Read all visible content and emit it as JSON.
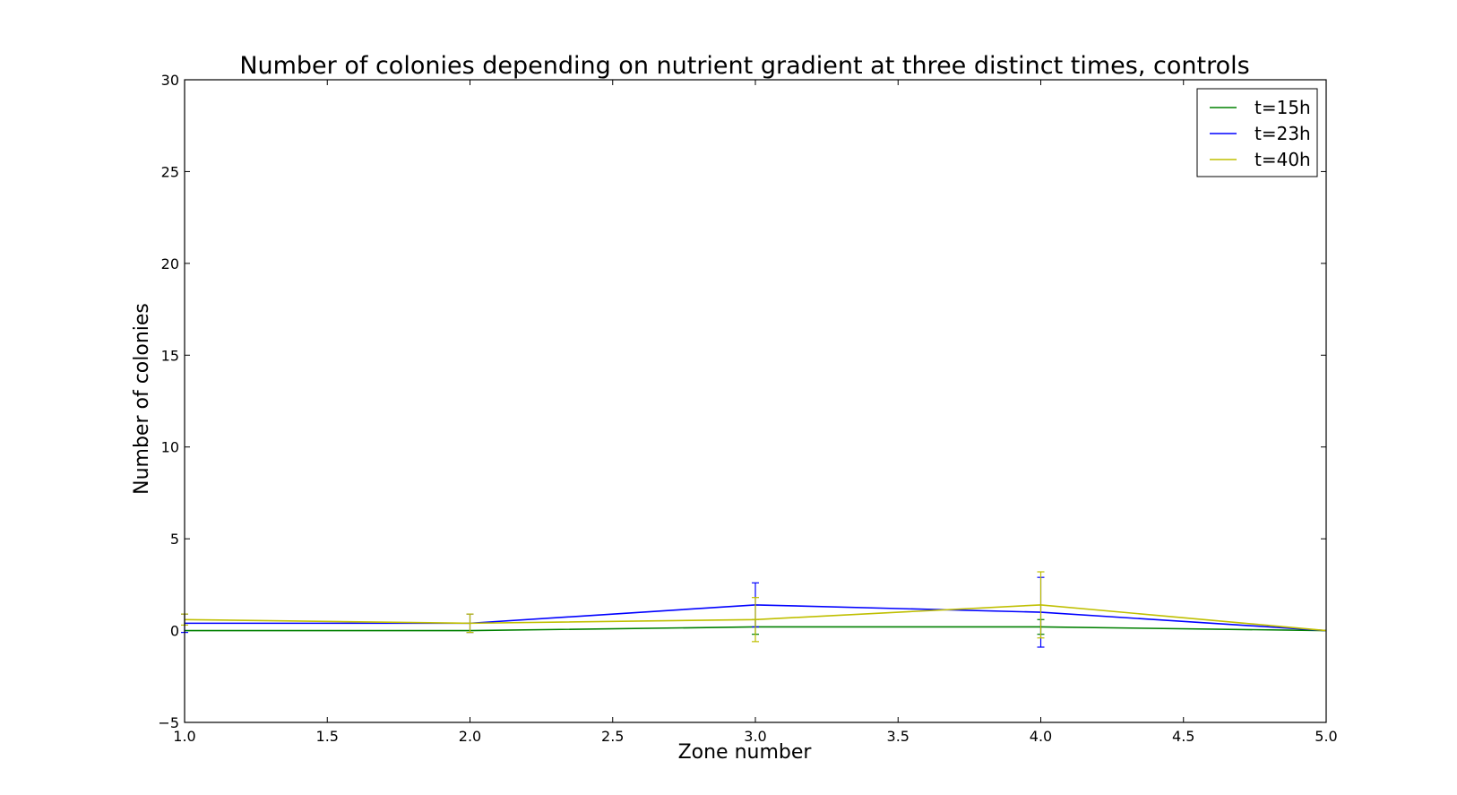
{
  "chart_data": {
    "type": "line",
    "title": "Number of colonies depending on nutrient gradient at three distinct times, controls",
    "xlabel": "Zone number",
    "ylabel": "Number of colonies",
    "xlim": [
      1.0,
      5.0
    ],
    "ylim": [
      -5,
      30
    ],
    "xticks": [
      "1.0",
      "1.5",
      "2.0",
      "2.5",
      "3.0",
      "3.5",
      "4.0",
      "4.5",
      "5.0"
    ],
    "yticks": [
      "−5",
      "0",
      "5",
      "10",
      "15",
      "20",
      "25",
      "30"
    ],
    "grid": false,
    "legend_position": "top-right",
    "x": [
      1,
      2,
      3,
      4,
      5
    ],
    "series": [
      {
        "name": "t=15h",
        "color": "#008000",
        "values": [
          0.0,
          0.0,
          0.2,
          0.2,
          0.0
        ],
        "errors": [
          0.0,
          0.0,
          0.4,
          0.4,
          0.0
        ]
      },
      {
        "name": "t=23h",
        "color": "#0000ff",
        "values": [
          0.4,
          0.4,
          1.4,
          1.0,
          0.0
        ],
        "errors": [
          0.5,
          0.5,
          1.2,
          1.9,
          0.0
        ]
      },
      {
        "name": "t=40h",
        "color": "#bfbf00",
        "values": [
          0.6,
          0.4,
          0.6,
          1.4,
          0.0
        ],
        "errors": [
          0.3,
          0.5,
          1.2,
          1.8,
          0.0
        ]
      }
    ]
  }
}
